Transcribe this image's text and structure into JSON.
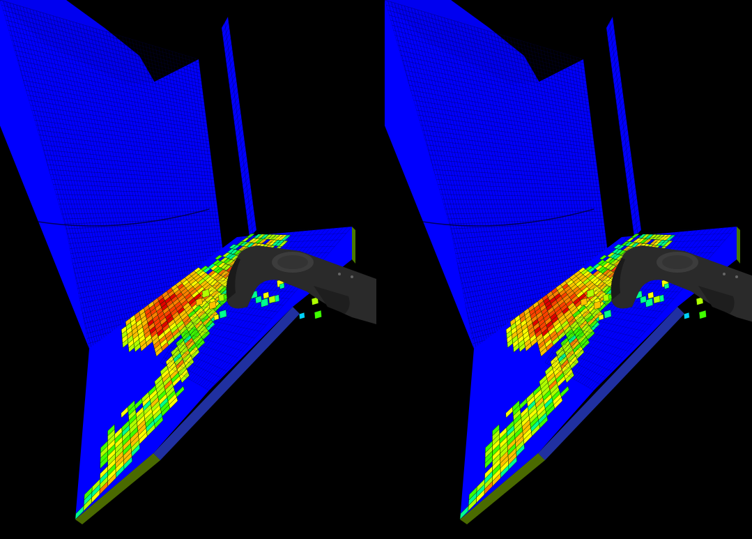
{
  "view": {
    "mode": "stereo-side-by-side",
    "eyes": [
      "left",
      "right"
    ]
  },
  "scene": {
    "background": "#000000",
    "mesh_base_color": "#0000ff",
    "mesh_line_color": "#000044",
    "field_palette": [
      "#0000ff",
      "#0088ff",
      "#00d0ff",
      "#00ff90",
      "#40ff00",
      "#b0ff00",
      "#ffff00",
      "#ffc000",
      "#ff8000",
      "#ff4000",
      "#e00000"
    ]
  },
  "controller": {
    "name": "vr-hand-controller",
    "body_color": "#2a2a2a",
    "highlight_color": "#3c3c3c"
  }
}
